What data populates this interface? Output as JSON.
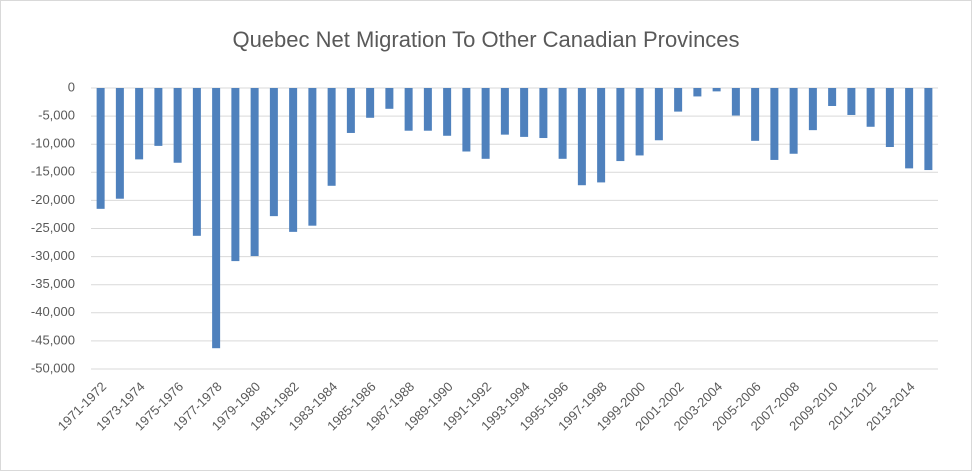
{
  "chart_data": {
    "type": "bar",
    "title": "Quebec Net Migration To Other Canadian Provinces",
    "categories": [
      "1971-1972",
      null,
      "1973-1974",
      null,
      "1975-1976",
      null,
      "1977-1978",
      null,
      "1979-1980",
      null,
      "1981-1982",
      null,
      "1983-1984",
      null,
      "1985-1986",
      null,
      "1987-1988",
      null,
      "1989-1990",
      null,
      "1991-1992",
      null,
      "1993-1994",
      null,
      "1995-1996",
      null,
      "1997-1998",
      null,
      "1999-2000",
      null,
      "2001-2002",
      null,
      "2003-2004",
      null,
      "2005-2006",
      null,
      "2007-2008",
      null,
      "2009-2010",
      null,
      "2011-2012",
      null,
      "2013-2014",
      null
    ],
    "values": [
      -21500,
      -19700,
      -12700,
      -10300,
      -13300,
      -26300,
      -46300,
      -30800,
      -29900,
      -22800,
      -25600,
      -24500,
      -17400,
      -8000,
      -5300,
      -3700,
      -7600,
      -7600,
      -8500,
      -11300,
      -12600,
      -8300,
      -8700,
      -8900,
      -12600,
      -17300,
      -16800,
      -13000,
      -12000,
      -9300,
      -4200,
      -1500,
      -600,
      -4900,
      -9400,
      -12800,
      -11700,
      -7500,
      -3200,
      -4800,
      -6900,
      -10500,
      -14300,
      -14600
    ],
    "color": "#4f81bd",
    "ylim": [
      -50000,
      0
    ],
    "yticks": [
      {
        "value": -50000,
        "label": "-50,000"
      },
      {
        "value": -45000,
        "label": "-45,000"
      },
      {
        "value": -40000,
        "label": "-40,000"
      },
      {
        "value": -35000,
        "label": "-35,000"
      },
      {
        "value": -30000,
        "label": "-30,000"
      },
      {
        "value": -25000,
        "label": "-25,000"
      },
      {
        "value": -20000,
        "label": "-20,000"
      },
      {
        "value": -15000,
        "label": "-15,000"
      },
      {
        "value": -10000,
        "label": "-10,000"
      },
      {
        "value": -5000,
        "label": "-5,000"
      },
      0
    ],
    "grid": true
  }
}
